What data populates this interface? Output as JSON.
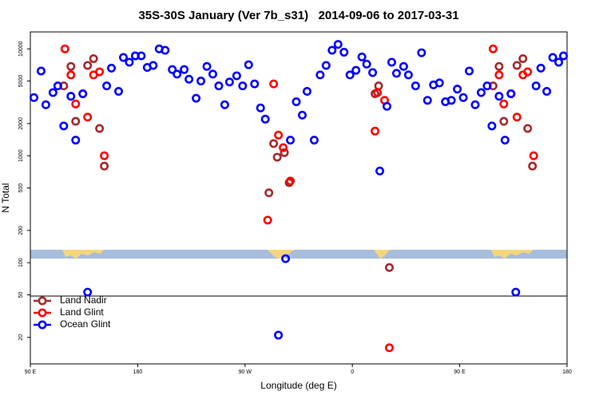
{
  "chart_data": {
    "type": "scatter",
    "title": "35S-30S January (Ver 7b_s31)   2014-09-06 to 2017-03-31",
    "x_label": "Longitude (deg E)",
    "y_label": "N Total",
    "ylog": true,
    "grid": false,
    "legend_position": "lower left",
    "xlim": [
      90,
      540
    ],
    "ylim": [
      11.3,
      14400
    ],
    "xticks": [
      {
        "value": 90,
        "label": "90 E"
      },
      180,
      {
        "value": 270,
        "label": "90 W"
      },
      {
        "value": 360,
        "label": "0"
      },
      {
        "value": 450,
        "label": "90 E"
      },
      {
        "value": 540,
        "label": "180"
      }
    ],
    "yticks": [
      20,
      50,
      100,
      200,
      500,
      1000,
      2000,
      5000,
      10000
    ],
    "series": [
      {
        "name": "Land Nadir",
        "color": "#a52a2a",
        "x": [
          118,
          124,
          128,
          138,
          143,
          148,
          152,
          290,
          294,
          297,
          303,
          307,
          379,
          382,
          391,
          478,
          483,
          487,
          498,
          503,
          507,
          511
        ],
        "values": [
          4500,
          6850,
          2100,
          7000,
          8100,
          1800,
          800,
          450,
          1300,
          970,
          1070,
          560,
          3800,
          4500,
          90,
          4500,
          6850,
          2100,
          7000,
          8100,
          1800,
          800
        ]
      },
      {
        "name": "Land Glint",
        "color": "#ff0000",
        "x": [
          119,
          124,
          128,
          134,
          138,
          143,
          148,
          152,
          289,
          294,
          298,
          302,
          308,
          379,
          381,
          387,
          391,
          478,
          483,
          487,
          493,
          498,
          503,
          507,
          512
        ],
        "values": [
          10000,
          5700,
          3050,
          3800,
          2300,
          5700,
          6100,
          1000,
          250,
          4700,
          1560,
          1190,
          580,
          1700,
          3900,
          3300,
          16,
          10000,
          5700,
          3050,
          3800,
          2300,
          5700,
          6100,
          1000
        ]
      },
      {
        "name": "Ocean Glint",
        "color": "#0000ff",
        "x": [
          93,
          99,
          103,
          109,
          113,
          118,
          124,
          128,
          134,
          138,
          154,
          158,
          164,
          168,
          173,
          178,
          183,
          188,
          193,
          198,
          203,
          209,
          213,
          219,
          223,
          229,
          233,
          238,
          243,
          248,
          253,
          257,
          263,
          268,
          273,
          278,
          283,
          287,
          298,
          304,
          308,
          313,
          318,
          322,
          328,
          333,
          338,
          343,
          348,
          353,
          358,
          363,
          368,
          372,
          377,
          383,
          389,
          393,
          397,
          403,
          407,
          413,
          418,
          423,
          428,
          433,
          438,
          443,
          448,
          453,
          458,
          463,
          468,
          473,
          477,
          483,
          488,
          493,
          497,
          514,
          518,
          523,
          528,
          533,
          537
        ],
        "values": [
          3500,
          6200,
          3000,
          3900,
          4500,
          1900,
          3600,
          1400,
          3800,
          53,
          4500,
          6600,
          4000,
          8300,
          7500,
          8600,
          8600,
          6700,
          7000,
          10000,
          9700,
          6400,
          5800,
          6400,
          5200,
          3450,
          5000,
          6850,
          5800,
          4500,
          3000,
          4900,
          5600,
          4500,
          7100,
          4700,
          2800,
          2200,
          21,
          109,
          1400,
          3200,
          2400,
          4000,
          1400,
          5700,
          7000,
          9700,
          11000,
          9300,
          5700,
          6300,
          8400,
          7200,
          6000,
          720,
          2900,
          7500,
          5900,
          6850,
          5700,
          4500,
          9200,
          3300,
          4600,
          4800,
          3200,
          3300,
          4200,
          3500,
          6200,
          3000,
          3900,
          4500,
          1900,
          3600,
          1400,
          3800,
          53,
          4500,
          6600,
          4000,
          8300,
          7500,
          8600
        ]
      }
    ]
  }
}
